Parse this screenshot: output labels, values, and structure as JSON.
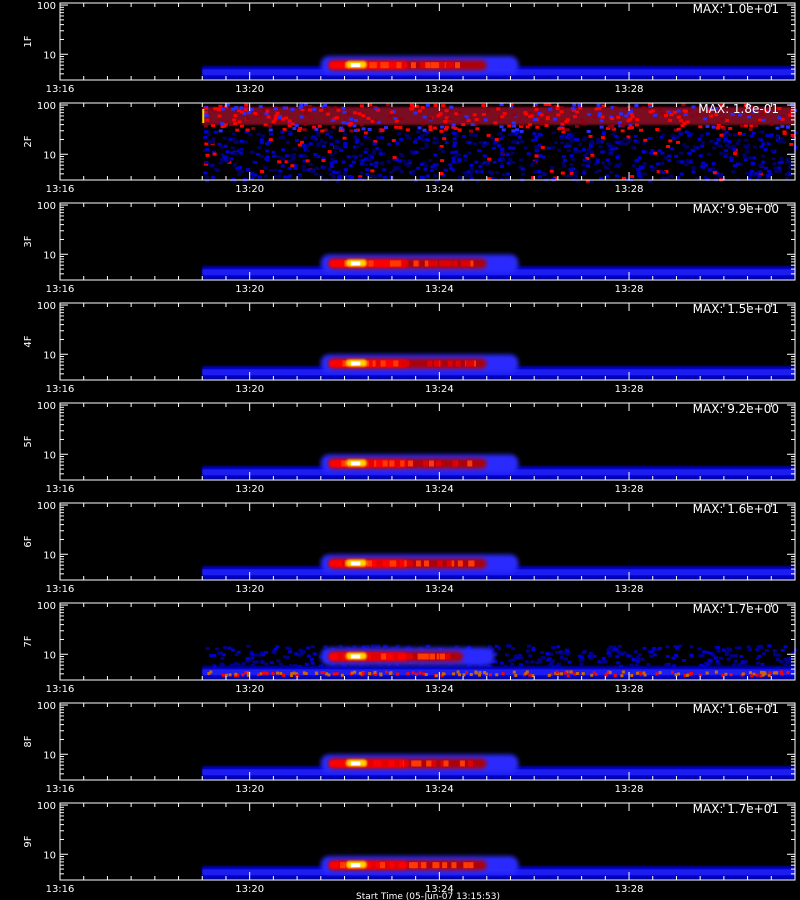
{
  "chart_data": {
    "type": "heatmap",
    "layout": "9 stacked spectrogram panels sharing a time axis",
    "colormap": [
      "#000000",
      "#0000cc",
      "#2a2aff",
      "#ff0000",
      "#ffd700",
      "#ffffff"
    ],
    "x_range": [
      "13:16",
      "13:31:30"
    ],
    "x_ticks": [
      "13:16",
      "13:20",
      "13:24",
      "13:28"
    ],
    "y_scale": "log",
    "y_range": [
      3,
      110
    ],
    "y_ticks": [
      "100",
      "10"
    ],
    "data_start": "13:19",
    "footer": "Start Time (05-Jun-07 13:15:53)",
    "panels": [
      {
        "ylabel": "1F",
        "max": "MAX: 1.0e+01",
        "pattern": "burst",
        "burst_start": "13:21:40",
        "burst_peak": "13:22:10",
        "burst_end": "13:25:00",
        "center_freq": 6
      },
      {
        "ylabel": "2F",
        "max": "MAX: 1.8e-01",
        "pattern": "noise",
        "band_freq": 60
      },
      {
        "ylabel": "3F",
        "max": "MAX: 9.9e+00",
        "pattern": "burst",
        "burst_start": "13:21:40",
        "burst_peak": "13:22:10",
        "burst_end": "13:25:00",
        "center_freq": 6.5
      },
      {
        "ylabel": "4F",
        "max": "MAX: 1.5e+01",
        "pattern": "burst",
        "burst_start": "13:21:40",
        "burst_peak": "13:22:10",
        "burst_end": "13:25:00",
        "center_freq": 6.5
      },
      {
        "ylabel": "5F",
        "max": "MAX: 9.2e+00",
        "pattern": "burst",
        "burst_start": "13:21:40",
        "burst_peak": "13:22:10",
        "burst_end": "13:25:00",
        "center_freq": 6.5
      },
      {
        "ylabel": "6F",
        "max": "MAX: 1.6e+01",
        "pattern": "burst",
        "burst_start": "13:21:40",
        "burst_peak": "13:22:10",
        "burst_end": "13:25:00",
        "center_freq": 6.5
      },
      {
        "ylabel": "7F",
        "max": "MAX: 1.7e+00",
        "pattern": "burst_noise",
        "burst_start": "13:21:40",
        "burst_peak": "13:22:10",
        "burst_end": "13:24:30",
        "center_freq": 9
      },
      {
        "ylabel": "8F",
        "max": "MAX: 1.6e+01",
        "pattern": "burst",
        "burst_start": "13:21:40",
        "burst_peak": "13:22:10",
        "burst_end": "13:25:00",
        "center_freq": 6.5
      },
      {
        "ylabel": "9F",
        "max": "MAX: 1.7e+01",
        "pattern": "burst",
        "burst_start": "13:21:40",
        "burst_peak": "13:22:10",
        "burst_end": "13:25:00",
        "center_freq": 6
      }
    ]
  }
}
